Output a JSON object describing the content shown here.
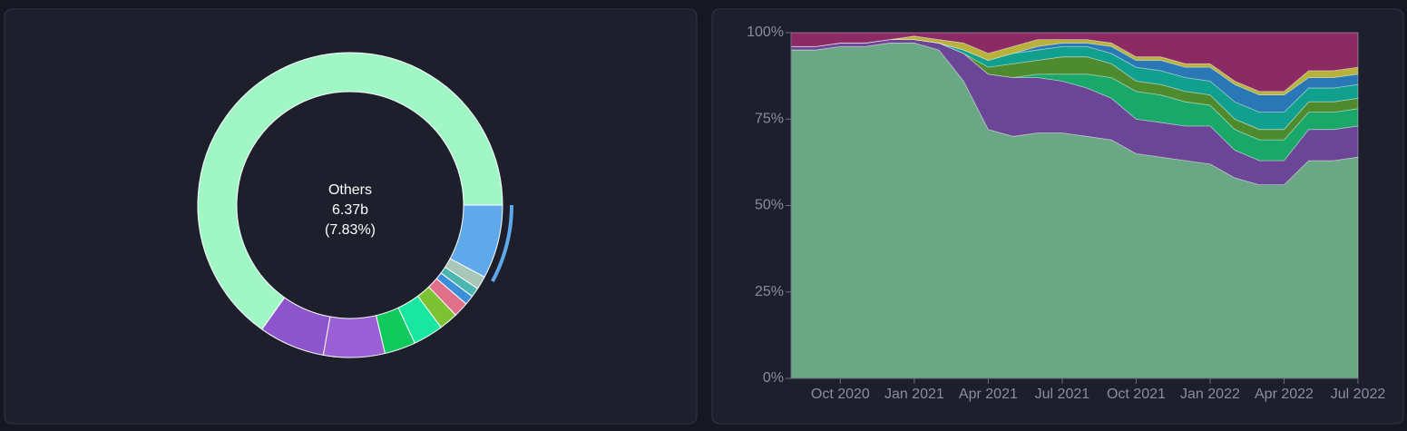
{
  "chart_data": [
    {
      "type": "pie",
      "categories": [
        "Others",
        null,
        null,
        null,
        null,
        null,
        null,
        null,
        null,
        null,
        null
      ],
      "values": [
        7.83,
        1.4,
        1.0,
        1.0,
        1.6,
        2.0,
        3.2,
        3.3,
        6.5,
        7.0,
        65.17
      ],
      "colors": [
        "#5fa8ea",
        "#a9c7b8",
        "#4bb5b0",
        "#3a8fd8",
        "#e06f8a",
        "#7cc233",
        "#19e6a0",
        "#11c95c",
        "#9b5fd6",
        "#8c55cc",
        "#a0f7c5"
      ],
      "center_label": {
        "name": "Others",
        "amount": "6.37b",
        "share": "(7.83%)"
      }
    },
    {
      "type": "area",
      "stacked": true,
      "x": [
        "2020-08",
        "2020-09",
        "2020-10",
        "2020-11",
        "2020-12",
        "2021-01",
        "2021-02",
        "2021-03",
        "2021-04",
        "2021-05",
        "2021-06",
        "2021-07",
        "2021-08",
        "2021-09",
        "2021-10",
        "2021-11",
        "2021-12",
        "2022-01",
        "2022-02",
        "2022-03",
        "2022-04",
        "2022-05",
        "2022-06",
        "2022-07"
      ],
      "xlim": [
        "2020-08",
        "2022-07"
      ],
      "xticks": [
        {
          "value": "2020-10",
          "label": "Oct 2020"
        },
        {
          "value": "2021-01",
          "label": "Jan 2021"
        },
        {
          "value": "2021-04",
          "label": "Apr 2021"
        },
        {
          "value": "2021-07",
          "label": "Jul 2021"
        },
        {
          "value": "2021-10",
          "label": "Oct 2021"
        },
        {
          "value": "2022-01",
          "label": "Jan 2022"
        },
        {
          "value": "2022-04",
          "label": "Apr 2022"
        },
        {
          "value": "2022-07",
          "label": "Jul 2022"
        }
      ],
      "ylim": [
        0,
        100
      ],
      "yticks": [
        {
          "value": 0,
          "label": "0%"
        },
        {
          "value": 25,
          "label": "25%"
        },
        {
          "value": 50,
          "label": "50%"
        },
        {
          "value": 75,
          "label": "75%"
        },
        {
          "value": 100,
          "label": "100%"
        }
      ],
      "series": [
        {
          "color": "#6aa784",
          "values": [
            95,
            95,
            96,
            96,
            97,
            97,
            95,
            86,
            72,
            70,
            71,
            71,
            70,
            69,
            65,
            64,
            63,
            62,
            58,
            56,
            56,
            63,
            63,
            64
          ]
        },
        {
          "color": "#6b4596",
          "values": [
            1,
            1,
            1,
            1,
            1,
            1,
            2,
            8,
            16,
            17,
            16,
            15,
            14,
            12,
            10,
            10,
            10,
            11,
            8,
            7,
            7,
            9,
            9,
            9
          ]
        },
        {
          "color": "#1aa86a",
          "values": [
            0,
            0,
            0,
            0,
            0,
            0,
            0,
            0,
            0,
            0,
            1,
            2,
            4,
            6,
            8,
            8,
            7,
            6,
            6,
            6,
            6,
            5,
            5,
            5
          ]
        },
        {
          "color": "#4e8a2e",
          "values": [
            0,
            0,
            0,
            0,
            0,
            0,
            0,
            0,
            2,
            4,
            4,
            5,
            5,
            4,
            3,
            3,
            3,
            3,
            3,
            3,
            3,
            3,
            3,
            3
          ]
        },
        {
          "color": "#12a08e",
          "values": [
            0,
            0,
            0,
            0,
            0,
            0,
            0,
            1,
            2,
            3,
            3,
            3,
            3,
            3,
            4,
            4,
            4,
            4,
            5,
            5,
            5,
            4,
            4,
            4
          ]
        },
        {
          "color": "#2a77b5",
          "values": [
            0,
            0,
            0,
            0,
            0,
            0,
            0,
            0,
            0,
            0,
            1,
            1,
            1,
            2,
            2,
            3,
            3,
            4,
            5,
            5,
            5,
            3,
            3,
            3
          ]
        },
        {
          "color": "#b8b13a",
          "values": [
            0,
            0,
            0,
            0,
            0,
            1,
            1,
            2,
            2,
            2,
            2,
            1,
            1,
            1,
            1,
            1,
            1,
            1,
            1,
            1,
            1,
            2,
            2,
            2
          ]
        },
        {
          "color": "#8c2a64",
          "values": [
            4,
            4,
            3,
            3,
            2,
            1,
            2,
            3,
            6,
            4,
            2,
            2,
            2,
            3,
            7,
            7,
            9,
            9,
            14,
            17,
            17,
            11,
            11,
            10
          ]
        }
      ]
    }
  ]
}
